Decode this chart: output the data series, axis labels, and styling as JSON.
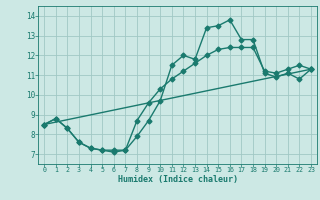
{
  "xlabel": "Humidex (Indice chaleur)",
  "bg_color": "#cce8e4",
  "grid_color": "#a0c8c4",
  "line_color": "#1a7a6e",
  "markersize": 2.5,
  "linewidth": 1.0,
  "xlim": [
    -0.5,
    23.5
  ],
  "ylim": [
    6.5,
    14.5
  ],
  "xticks": [
    0,
    1,
    2,
    3,
    4,
    5,
    6,
    7,
    8,
    9,
    10,
    11,
    12,
    13,
    14,
    15,
    16,
    17,
    18,
    19,
    20,
    21,
    22,
    23
  ],
  "yticks": [
    7,
    8,
    9,
    10,
    11,
    12,
    13,
    14
  ],
  "line1_x": [
    0,
    1,
    2,
    3,
    4,
    5,
    6,
    7,
    8,
    9,
    10,
    11,
    12,
    13,
    14,
    15,
    16,
    17,
    18,
    19,
    20,
    21,
    22,
    23
  ],
  "line1_y": [
    8.5,
    8.8,
    8.3,
    7.6,
    7.3,
    7.2,
    7.1,
    7.2,
    7.9,
    8.7,
    9.7,
    11.5,
    12.0,
    11.8,
    13.4,
    13.5,
    13.8,
    12.8,
    12.8,
    11.1,
    10.9,
    11.1,
    10.8,
    11.3
  ],
  "line2_x": [
    0,
    1,
    2,
    3,
    4,
    5,
    6,
    7,
    8,
    9,
    10,
    11,
    12,
    13,
    14,
    15,
    16,
    17,
    18,
    19,
    20,
    21,
    22,
    23
  ],
  "line2_y": [
    8.5,
    8.8,
    8.3,
    7.6,
    7.3,
    7.2,
    7.2,
    7.2,
    8.7,
    9.6,
    10.3,
    10.8,
    11.2,
    11.6,
    12.0,
    12.3,
    12.4,
    12.4,
    12.4,
    11.2,
    11.1,
    11.3,
    11.5,
    11.3
  ],
  "line3_x": [
    0,
    23
  ],
  "line3_y": [
    8.5,
    11.3
  ]
}
